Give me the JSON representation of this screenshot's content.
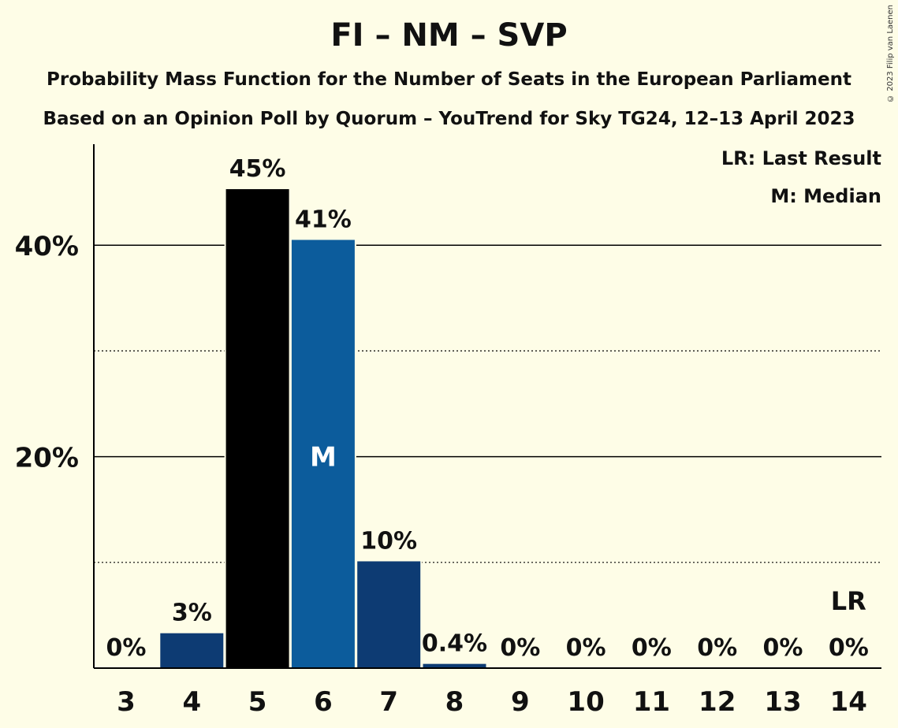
{
  "chart_data": {
    "type": "bar",
    "title": "FI – NM – SVP",
    "subtitle_lines": [
      "Probability Mass Function for the Number of Seats in the European Parliament",
      "Based on an Opinion Poll by Quorum – YouTrend for Sky TG24, 12–13 April 2023"
    ],
    "categories": [
      "3",
      "4",
      "5",
      "6",
      "7",
      "8",
      "9",
      "10",
      "11",
      "12",
      "13",
      "14"
    ],
    "values": [
      0,
      3.3,
      45.3,
      40.5,
      10.1,
      0.4,
      0,
      0,
      0,
      0,
      0,
      0
    ],
    "value_labels": [
      "0%",
      "3%",
      "45%",
      "41%",
      "10%",
      "0.4%",
      "0%",
      "0%",
      "0%",
      "0%",
      "0%",
      "0%"
    ],
    "bar_colors": [
      "#0d3b73",
      "#0d3b73",
      "#000000",
      "#0c5c9c",
      "#0d3b73",
      "#0d3b73",
      "#0d3b73",
      "#0d3b73",
      "#0d3b73",
      "#0d3b73",
      "#0d3b73",
      "#0d3b73"
    ],
    "ylim": [
      0,
      50
    ],
    "y_ticks": [
      {
        "value": 10,
        "label": "",
        "style": "dotted"
      },
      {
        "value": 20,
        "label": "20%",
        "style": "solid"
      },
      {
        "value": 30,
        "label": "",
        "style": "dotted"
      },
      {
        "value": 40,
        "label": "40%",
        "style": "solid"
      }
    ],
    "median_category": "6",
    "median_marker": "M",
    "last_result_category": "14",
    "last_result_marker": "LR",
    "legend": [
      "LR: Last Result",
      "M: Median"
    ],
    "legend_position": "top-right",
    "grid": true
  },
  "copyright": "© 2023 Filip van Laenen",
  "colors": {
    "background": "#fefde7",
    "text": "#111111",
    "median_label": "#ffffff"
  }
}
